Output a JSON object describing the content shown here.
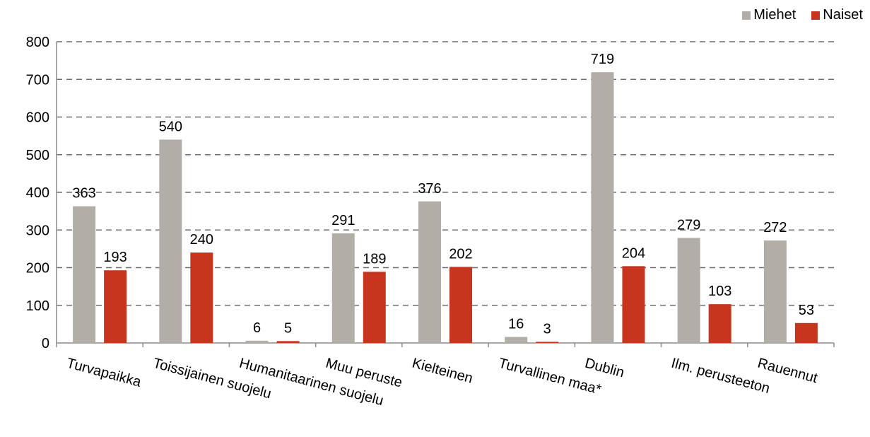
{
  "chart_data": {
    "type": "bar",
    "categories": [
      "Turvapaikka",
      "Toissijainen suojelu",
      "Humanitaarinen suojelu",
      "Muu peruste",
      "Kielteinen",
      "Turvallinen maa*",
      "Dublin",
      "Ilm. perusteeton",
      "Rauennut"
    ],
    "series": [
      {
        "name": "Miehet",
        "values": [
          363,
          540,
          6,
          291,
          376,
          16,
          719,
          279,
          272
        ],
        "color": "#b2aea7"
      },
      {
        "name": "Naiset",
        "values": [
          193,
          240,
          5,
          189,
          202,
          3,
          204,
          103,
          53
        ],
        "color": "#c8351f"
      }
    ],
    "ylim": [
      0,
      800
    ],
    "yticks": [
      0,
      100,
      200,
      300,
      400,
      500,
      600,
      700,
      800
    ],
    "grid": true,
    "legend": "top-right",
    "title": "",
    "xlabel": "",
    "ylabel": ""
  }
}
